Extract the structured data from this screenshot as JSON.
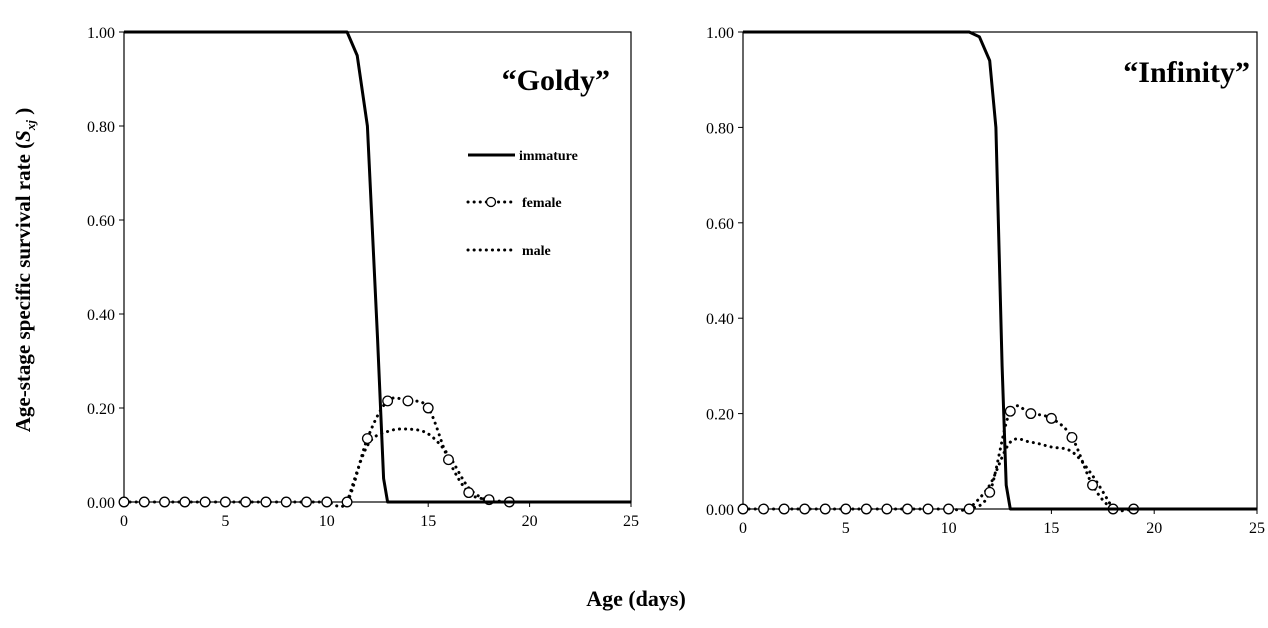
{
  "y_axis_label": "Age-stage specific survival rate (",
  "y_axis_symbol": "S",
  "y_axis_subscript": "xj",
  "y_axis_close": " )",
  "x_axis_label": "Age (days)",
  "legend": {
    "immature": "immature",
    "female": "female",
    "male": "male"
  },
  "chart_data": [
    {
      "type": "line",
      "title": "“Goldy”",
      "xlim": [
        0,
        25
      ],
      "ylim": [
        0,
        1
      ],
      "x_ticks": [
        "0",
        "5",
        "10",
        "15",
        "20",
        "25"
      ],
      "y_ticks": [
        "0.00",
        "0.20",
        "0.40",
        "0.60",
        "0.80",
        "1.00"
      ],
      "series": [
        {
          "name": "immature",
          "style": "solid",
          "x": [
            0,
            10,
            10.5,
            11,
            11.5,
            12,
            12.5,
            12.8,
            13,
            25
          ],
          "y": [
            1.0,
            1.0,
            1.0,
            1.0,
            0.95,
            0.8,
            0.35,
            0.05,
            0.0,
            0.0
          ]
        },
        {
          "name": "female",
          "style": "dotted-circle",
          "x": [
            0,
            1,
            2,
            3,
            4,
            5,
            6,
            7,
            8,
            9,
            10,
            11,
            12,
            13,
            14,
            15,
            16,
            17,
            18,
            19
          ],
          "y": [
            0,
            0,
            0,
            0,
            0,
            0,
            0,
            0,
            0,
            0,
            0,
            0,
            0.135,
            0.215,
            0.215,
            0.2,
            0.09,
            0.02,
            0.005,
            0
          ]
        },
        {
          "name": "male",
          "style": "dotted",
          "x": [
            11,
            12,
            13,
            14,
            15,
            16,
            17,
            18
          ],
          "y": [
            0,
            0.12,
            0.15,
            0.155,
            0.145,
            0.1,
            0.03,
            0
          ]
        }
      ]
    },
    {
      "type": "line",
      "title": "“Infinity”",
      "xlim": [
        0,
        25
      ],
      "ylim": [
        0,
        1
      ],
      "x_ticks": [
        "0",
        "5",
        "10",
        "15",
        "20",
        "25"
      ],
      "y_ticks": [
        "0.00",
        "0.20",
        "0.40",
        "0.60",
        "0.80",
        "1.00"
      ],
      "series": [
        {
          "name": "immature",
          "style": "solid",
          "x": [
            0,
            10.5,
            11,
            11.5,
            12,
            12.3,
            12.6,
            12.8,
            13,
            25
          ],
          "y": [
            1.0,
            1.0,
            1.0,
            0.99,
            0.94,
            0.8,
            0.3,
            0.05,
            0.0,
            0.0
          ]
        },
        {
          "name": "female",
          "style": "dotted-circle",
          "x": [
            0,
            1,
            2,
            3,
            4,
            5,
            6,
            7,
            8,
            9,
            10,
            11,
            12,
            13,
            14,
            15,
            16,
            17,
            18,
            19
          ],
          "y": [
            0,
            0,
            0,
            0,
            0,
            0,
            0,
            0,
            0,
            0,
            0,
            0,
            0.035,
            0.205,
            0.2,
            0.19,
            0.15,
            0.05,
            0,
            0
          ]
        },
        {
          "name": "male",
          "style": "dotted",
          "x": [
            11,
            12,
            13,
            14,
            15,
            16,
            17,
            18
          ],
          "y": [
            0,
            0.05,
            0.14,
            0.14,
            0.13,
            0.12,
            0.07,
            0
          ]
        }
      ]
    }
  ]
}
